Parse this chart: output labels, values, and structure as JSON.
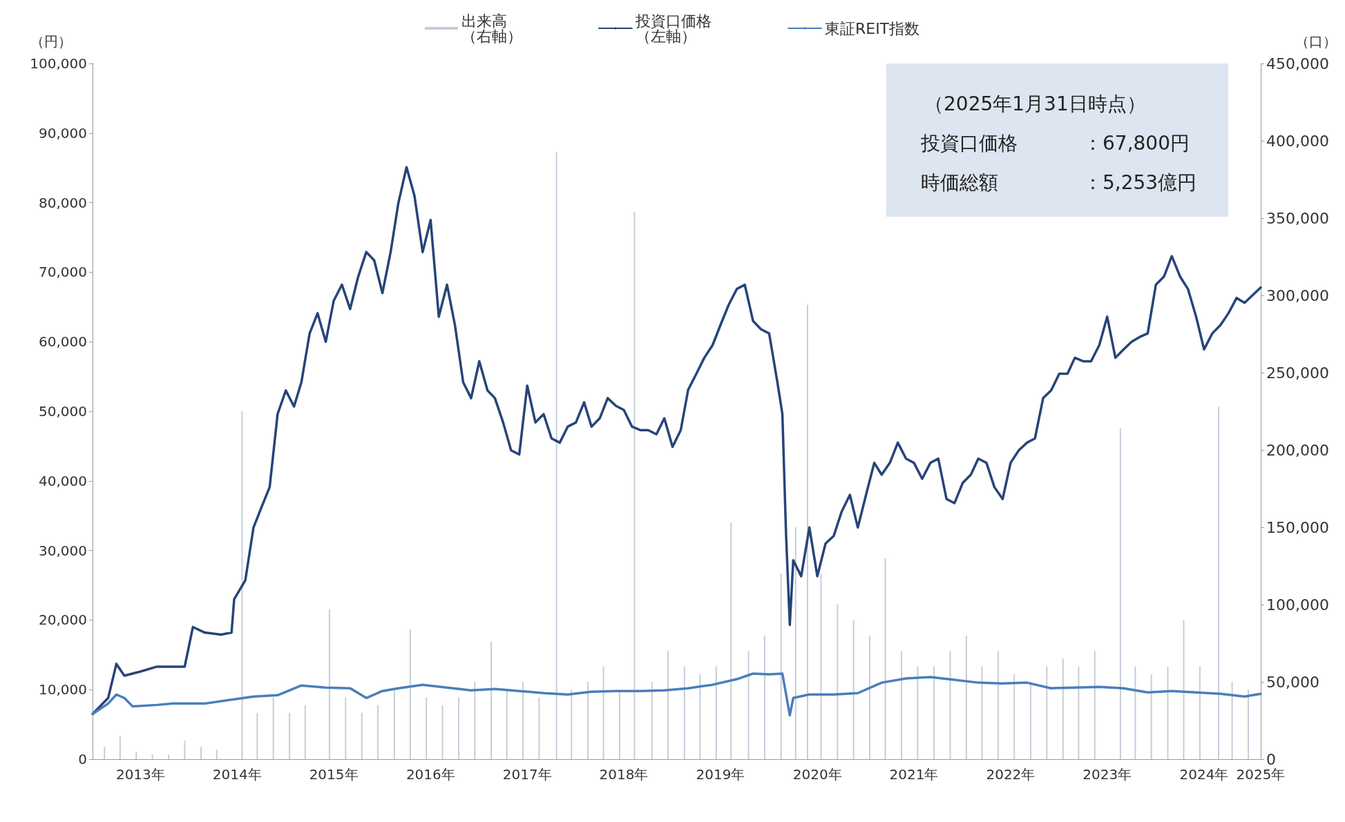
{
  "chart_data": {
    "type": "line",
    "ylabel": "（円）",
    "y2label": "（口）",
    "xlim": [
      "2013-01-01",
      "2025-01-31"
    ],
    "xticks": [
      {
        "value": "2013-07-01",
        "label": "2013年"
      },
      {
        "value": "2014-07-01",
        "label": "2014年"
      },
      {
        "value": "2015-07-01",
        "label": "2015年"
      },
      {
        "value": "2016-07-01",
        "label": "2016年"
      },
      {
        "value": "2017-07-01",
        "label": "2017年"
      },
      {
        "value": "2018-07-01",
        "label": "2018年"
      },
      {
        "value": "2019-07-01",
        "label": "2019年"
      },
      {
        "value": "2020-07-01",
        "label": "2020年"
      },
      {
        "value": "2021-07-01",
        "label": "2021年"
      },
      {
        "value": "2022-07-01",
        "label": "2022年"
      },
      {
        "value": "2023-07-01",
        "label": "2023年"
      },
      {
        "value": "2024-07-01",
        "label": "2024年"
      },
      {
        "value": "2025-01-31",
        "label": "2025年"
      }
    ],
    "ylim": [
      0,
      100000
    ],
    "yticks": [
      0,
      {
        "value": 10000,
        "label": "10,000"
      },
      {
        "value": 20000,
        "label": "20,000"
      },
      {
        "value": 30000,
        "label": "30,000"
      },
      {
        "value": 40000,
        "label": "40,000"
      },
      {
        "value": 50000,
        "label": "50,000"
      },
      {
        "value": 60000,
        "label": "60,000"
      },
      {
        "value": 70000,
        "label": "70,000"
      },
      {
        "value": 80000,
        "label": "80,000"
      },
      {
        "value": 90000,
        "label": "90,000"
      },
      {
        "value": 100000,
        "label": "100,000"
      }
    ],
    "y2lim": [
      0,
      450000
    ],
    "y2ticks": [
      0,
      {
        "value": 50000,
        "label": "50,000"
      },
      {
        "value": 100000,
        "label": "100,000"
      },
      {
        "value": 150000,
        "label": "150,000"
      },
      {
        "value": 200000,
        "label": "200,000"
      },
      {
        "value": 250000,
        "label": "250,000"
      },
      {
        "value": 300000,
        "label": "300,000"
      },
      {
        "value": 350000,
        "label": "350,000"
      },
      {
        "value": 400000,
        "label": "400,000"
      },
      {
        "value": 450000,
        "label": "450,000"
      }
    ],
    "legend": "top",
    "grid": false,
    "marker": "none",
    "line_style": "solid",
    "annotations": [
      "（2025年1月31日時点）",
      "投資口価格",
      "：67,800円",
      "時価総額",
      "：5,253億円"
    ],
    "series": [
      {
        "name": "出来高（右軸）",
        "type": "bar",
        "axis": "y2",
        "color": "#c5cddb",
        "x": [
          "2013-02-15",
          "2013-04-15",
          "2013-06-15",
          "2013-08-15",
          "2013-10-15",
          "2013-12-15",
          "2014-02-15",
          "2014-04-15",
          "2014-07-20",
          "2014-09-15",
          "2014-11-15",
          "2015-01-15",
          "2015-03-15",
          "2015-06-15",
          "2015-08-15",
          "2015-10-15",
          "2015-12-15",
          "2016-02-15",
          "2016-04-15",
          "2016-06-15",
          "2016-08-15",
          "2016-10-15",
          "2016-12-15",
          "2017-02-15",
          "2017-04-15",
          "2017-06-15",
          "2017-08-15",
          "2017-10-20",
          "2017-12-15",
          "2018-02-15",
          "2018-04-15",
          "2018-06-15",
          "2018-08-10",
          "2018-10-15",
          "2018-12-15",
          "2019-02-15",
          "2019-04-15",
          "2019-06-15",
          "2019-08-10",
          "2019-10-15",
          "2019-12-15",
          "2020-02-15",
          "2020-04-10",
          "2020-05-25",
          "2020-07-15",
          "2020-09-15",
          "2020-11-15",
          "2021-01-15",
          "2021-03-15",
          "2021-05-15",
          "2021-07-15",
          "2021-09-15",
          "2021-11-15",
          "2022-01-15",
          "2022-03-15",
          "2022-05-15",
          "2022-07-15",
          "2022-09-15",
          "2022-11-15",
          "2023-01-15",
          "2023-03-15",
          "2023-05-15",
          "2023-08-20",
          "2023-10-15",
          "2023-12-15",
          "2024-02-15",
          "2024-04-15",
          "2024-06-15",
          "2024-08-25",
          "2024-10-15",
          "2024-12-15"
        ],
        "values": [
          8000,
          15000,
          5000,
          3000,
          3000,
          12000,
          8000,
          6000,
          225000,
          30000,
          40000,
          30000,
          35000,
          97000,
          40000,
          30000,
          35000,
          45000,
          84000,
          40000,
          35000,
          40000,
          50000,
          76000,
          45000,
          50000,
          40000,
          393000,
          45000,
          50000,
          60000,
          45000,
          354000,
          50000,
          70000,
          60000,
          55000,
          60000,
          153000,
          70000,
          80000,
          120000,
          150000,
          294000,
          120000,
          100000,
          90000,
          80000,
          130000,
          70000,
          60000,
          60000,
          70000,
          80000,
          60000,
          70000,
          55000,
          50000,
          60000,
          65000,
          60000,
          70000,
          214000,
          60000,
          55000,
          60000,
          90000,
          60000,
          228000,
          50000,
          45000
        ]
      },
      {
        "name": "投資口価格（左軸）",
        "axis": "y",
        "color": "#264478",
        "x": [
          "2013-01-01",
          "2013-03-01",
          "2013-04-01",
          "2013-05-01",
          "2013-07-01",
          "2013-09-01",
          "2013-12-15",
          "2014-01-15",
          "2014-03-01",
          "2014-05-01",
          "2014-06-10",
          "2014-06-20",
          "2014-08-01",
          "2014-09-01",
          "2014-10-01",
          "2014-11-01",
          "2014-12-01",
          "2015-01-01",
          "2015-02-01",
          "2015-03-01",
          "2015-04-01",
          "2015-05-01",
          "2015-06-01",
          "2015-07-01",
          "2015-08-01",
          "2015-09-01",
          "2015-10-01",
          "2015-11-01",
          "2015-12-01",
          "2016-01-01",
          "2016-02-01",
          "2016-03-01",
          "2016-04-01",
          "2016-05-01",
          "2016-06-01",
          "2016-07-01",
          "2016-08-01",
          "2016-09-01",
          "2016-10-01",
          "2016-11-01",
          "2016-12-01",
          "2017-01-01",
          "2017-02-01",
          "2017-03-01",
          "2017-04-01",
          "2017-05-01",
          "2017-06-01",
          "2017-07-01",
          "2017-08-01",
          "2017-09-01",
          "2017-10-01",
          "2017-11-01",
          "2017-12-01",
          "2018-01-01",
          "2018-02-01",
          "2018-03-01",
          "2018-04-01",
          "2018-05-01",
          "2018-06-01",
          "2018-07-01",
          "2018-08-01",
          "2018-09-01",
          "2018-10-01",
          "2018-11-01",
          "2018-12-01",
          "2019-01-01",
          "2019-02-01",
          "2019-03-01",
          "2019-04-01",
          "2019-05-01",
          "2019-06-01",
          "2019-07-01",
          "2019-08-01",
          "2019-09-01",
          "2019-10-01",
          "2019-11-01",
          "2019-12-01",
          "2020-01-01",
          "2020-02-01",
          "2020-02-20",
          "2020-03-05",
          "2020-03-19",
          "2020-04-01",
          "2020-05-01",
          "2020-06-01",
          "2020-07-01",
          "2020-08-01",
          "2020-09-01",
          "2020-10-01",
          "2020-11-01",
          "2020-12-01",
          "2021-01-01",
          "2021-02-01",
          "2021-03-01",
          "2021-04-01",
          "2021-05-01",
          "2021-06-01",
          "2021-07-01",
          "2021-08-01",
          "2021-09-01",
          "2021-10-01",
          "2021-11-01",
          "2021-12-01",
          "2022-01-01",
          "2022-02-01",
          "2022-03-01",
          "2022-04-01",
          "2022-05-01",
          "2022-06-01",
          "2022-07-01",
          "2022-08-01",
          "2022-09-01",
          "2022-10-01",
          "2022-11-01",
          "2022-12-01",
          "2023-01-01",
          "2023-02-01",
          "2023-03-01",
          "2023-04-01",
          "2023-05-01",
          "2023-06-01",
          "2023-07-01",
          "2023-08-01",
          "2023-09-01",
          "2023-10-01",
          "2023-11-01",
          "2023-12-01",
          "2024-01-01",
          "2024-02-01",
          "2024-03-01",
          "2024-04-01",
          "2024-05-01",
          "2024-06-01",
          "2024-07-01",
          "2024-08-01",
          "2024-09-01",
          "2024-10-01",
          "2024-11-01",
          "2024-12-01",
          "2025-01-31"
        ],
        "values": [
          6500,
          8800,
          13700,
          12000,
          12600,
          13300,
          13300,
          19000,
          18200,
          17900,
          18200,
          23000,
          25700,
          33300,
          36200,
          39100,
          49600,
          53000,
          50700,
          54200,
          61200,
          64100,
          60000,
          65900,
          68200,
          64700,
          69300,
          72900,
          71700,
          67000,
          72900,
          79900,
          85100,
          81000,
          72900,
          77500,
          63600,
          68200,
          62400,
          54200,
          51900,
          57200,
          53000,
          51900,
          48400,
          44400,
          43800,
          53700,
          48400,
          49600,
          46100,
          45500,
          47800,
          48400,
          51300,
          47800,
          49000,
          51900,
          50800,
          50200,
          47800,
          47300,
          47300,
          46700,
          49000,
          44900,
          47300,
          53100,
          55400,
          57700,
          59500,
          62400,
          65300,
          67600,
          68200,
          63000,
          61800,
          61200,
          54200,
          49600,
          32100,
          19300,
          28600,
          26300,
          33300,
          26300,
          31000,
          32100,
          35600,
          38000,
          33300,
          38000,
          42600,
          40900,
          42600,
          45500,
          43200,
          42600,
          40300,
          42600,
          43200,
          37400,
          36800,
          39700,
          40900,
          43200,
          42600,
          39100,
          37400,
          42600,
          44400,
          45500,
          46100,
          51900,
          53000,
          55400,
          55400,
          57700,
          57200,
          57200,
          59500,
          63600,
          57700,
          58900,
          60000,
          60700,
          61200,
          68200,
          69400,
          72300,
          69400,
          67600,
          63600,
          58900,
          61200,
          62400,
          64100,
          66300,
          65600,
          67800
        ]
      },
      {
        "name": "東証REIT指数",
        "axis": "y",
        "color": "#4a7ebb",
        "x": [
          "2013-01-01",
          "2013-03-01",
          "2013-04-01",
          "2013-05-01",
          "2013-06-01",
          "2013-09-01",
          "2013-11-01",
          "2014-03-01",
          "2014-06-01",
          "2014-09-01",
          "2014-12-01",
          "2015-03-01",
          "2015-06-01",
          "2015-09-01",
          "2015-11-01",
          "2016-01-01",
          "2016-03-01",
          "2016-06-01",
          "2016-09-01",
          "2016-12-01",
          "2017-03-01",
          "2017-06-01",
          "2017-09-01",
          "2017-12-01",
          "2018-03-01",
          "2018-06-01",
          "2018-09-01",
          "2018-12-01",
          "2019-03-01",
          "2019-06-01",
          "2019-09-01",
          "2019-11-01",
          "2020-01-01",
          "2020-02-20",
          "2020-03-19",
          "2020-04-01",
          "2020-06-01",
          "2020-09-01",
          "2020-12-01",
          "2021-03-01",
          "2021-06-01",
          "2021-09-01",
          "2021-12-01",
          "2022-03-01",
          "2022-06-01",
          "2022-09-01",
          "2022-12-01",
          "2023-03-01",
          "2023-06-01",
          "2023-09-01",
          "2023-12-01",
          "2024-03-01",
          "2024-06-01",
          "2024-09-01",
          "2024-12-01",
          "2025-01-31"
        ],
        "values": [
          6500,
          8000,
          9300,
          8800,
          7600,
          7800,
          8000,
          8000,
          8500,
          9000,
          9200,
          10600,
          10300,
          10200,
          8800,
          9800,
          10200,
          10700,
          10300,
          9900,
          10100,
          9800,
          9500,
          9300,
          9700,
          9800,
          9800,
          9900,
          10200,
          10700,
          11500,
          12300,
          12200,
          12300,
          6300,
          8800,
          9300,
          9300,
          9500,
          11000,
          11600,
          11800,
          11400,
          11000,
          10900,
          11000,
          10200,
          10300,
          10400,
          10200,
          9600,
          9800,
          9600,
          9400,
          9000,
          9400
        ]
      }
    ]
  }
}
